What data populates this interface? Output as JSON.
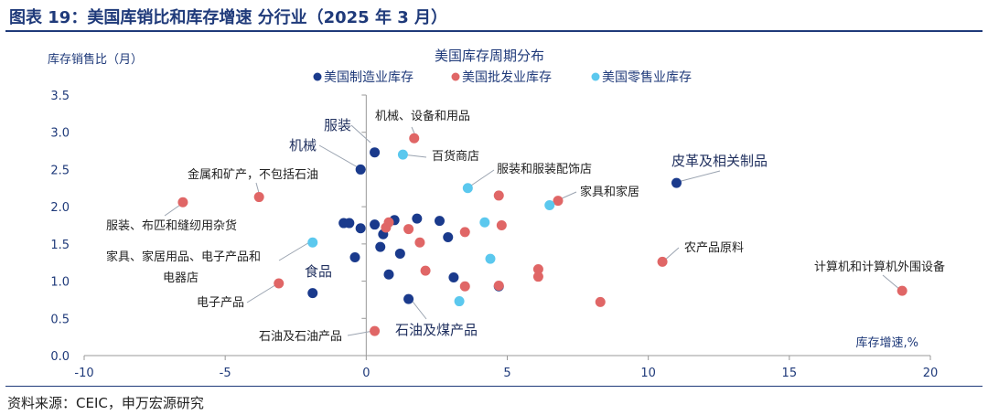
{
  "header": {
    "title": "图表 19：美国库销比和库存增速 分行业（2025 年 3 月）"
  },
  "footer": {
    "source": "资料来源：CEIC，申万宏源研究"
  },
  "chart_data": {
    "type": "scatter",
    "title": "美国库存周期分布",
    "xlabel": "库存增速,%",
    "ylabel": "库存销售比（月）",
    "xlim": [
      -10,
      20
    ],
    "ylim": [
      0,
      3.5
    ],
    "xticks": [
      "-10",
      "-5",
      "0",
      "5",
      "10",
      "15",
      "20"
    ],
    "yticks": [
      "0.0",
      "0.5",
      "1.0",
      "1.5",
      "2.0",
      "2.5",
      "3.0",
      "3.5"
    ],
    "grid": false,
    "legend_position": "top",
    "series": [
      {
        "name": "美国制造业库存",
        "color": "#1a3a8c",
        "points": [
          {
            "x": 0.3,
            "y": 2.73,
            "label": "服装"
          },
          {
            "x": -0.2,
            "y": 2.5,
            "label": "机械"
          },
          {
            "x": 11.0,
            "y": 2.32,
            "label": "皮革及相关制品"
          },
          {
            "x": -0.8,
            "y": 1.78
          },
          {
            "x": -0.6,
            "y": 1.78
          },
          {
            "x": -0.2,
            "y": 1.71
          },
          {
            "x": 0.3,
            "y": 1.76
          },
          {
            "x": 0.6,
            "y": 1.63
          },
          {
            "x": 1.0,
            "y": 1.82
          },
          {
            "x": 1.8,
            "y": 1.84
          },
          {
            "x": 2.6,
            "y": 1.81
          },
          {
            "x": 2.9,
            "y": 1.59
          },
          {
            "x": 0.5,
            "y": 1.46
          },
          {
            "x": 1.2,
            "y": 1.37
          },
          {
            "x": -0.4,
            "y": 1.32
          },
          {
            "x": 0.8,
            "y": 1.09
          },
          {
            "x": 3.1,
            "y": 1.05
          },
          {
            "x": 4.7,
            "y": 0.93
          },
          {
            "x": -1.9,
            "y": 0.84,
            "label": "食品"
          },
          {
            "x": 1.5,
            "y": 0.76,
            "label": "石油及煤产品"
          }
        ]
      },
      {
        "name": "美国批发业库存",
        "color": "#e06666",
        "points": [
          {
            "x": 1.7,
            "y": 2.92,
            "label": "机械、设备和用品"
          },
          {
            "x": -3.8,
            "y": 2.13,
            "label": "金属和矿产，不包括石油"
          },
          {
            "x": -6.5,
            "y": 2.06,
            "label": "服装、布匹和缝纫用杂货"
          },
          {
            "x": 4.7,
            "y": 2.15
          },
          {
            "x": 6.8,
            "y": 2.08,
            "label": "家具和家居"
          },
          {
            "x": 0.8,
            "y": 1.79
          },
          {
            "x": 0.7,
            "y": 1.72
          },
          {
            "x": 1.5,
            "y": 1.7
          },
          {
            "x": 3.5,
            "y": 1.66
          },
          {
            "x": 4.8,
            "y": 1.75
          },
          {
            "x": 1.9,
            "y": 1.52
          },
          {
            "x": 10.5,
            "y": 1.26,
            "label": "农产品原料"
          },
          {
            "x": 6.1,
            "y": 1.16
          },
          {
            "x": 6.1,
            "y": 1.06
          },
          {
            "x": 2.1,
            "y": 1.14
          },
          {
            "x": 3.5,
            "y": 0.93
          },
          {
            "x": 4.7,
            "y": 0.94
          },
          {
            "x": -3.1,
            "y": 0.97,
            "label": "电子产品"
          },
          {
            "x": 8.3,
            "y": 0.72
          },
          {
            "x": 19.0,
            "y": 0.87,
            "label": "计算机和计算机外围设备"
          },
          {
            "x": 0.3,
            "y": 0.33,
            "label": "石油及石油产品"
          }
        ]
      },
      {
        "name": "美国零售业库存",
        "color": "#5bc8ee",
        "points": [
          {
            "x": 1.3,
            "y": 2.7,
            "label": "百货商店"
          },
          {
            "x": 3.6,
            "y": 2.25,
            "label": "服装和服装配饰店"
          },
          {
            "x": 6.5,
            "y": 2.02
          },
          {
            "x": 4.2,
            "y": 1.79
          },
          {
            "x": -1.9,
            "y": 1.52,
            "label": "家具、家居用品、电子产品和电器店"
          },
          {
            "x": 4.4,
            "y": 1.3
          },
          {
            "x": 3.3,
            "y": 0.73
          }
        ]
      }
    ]
  }
}
